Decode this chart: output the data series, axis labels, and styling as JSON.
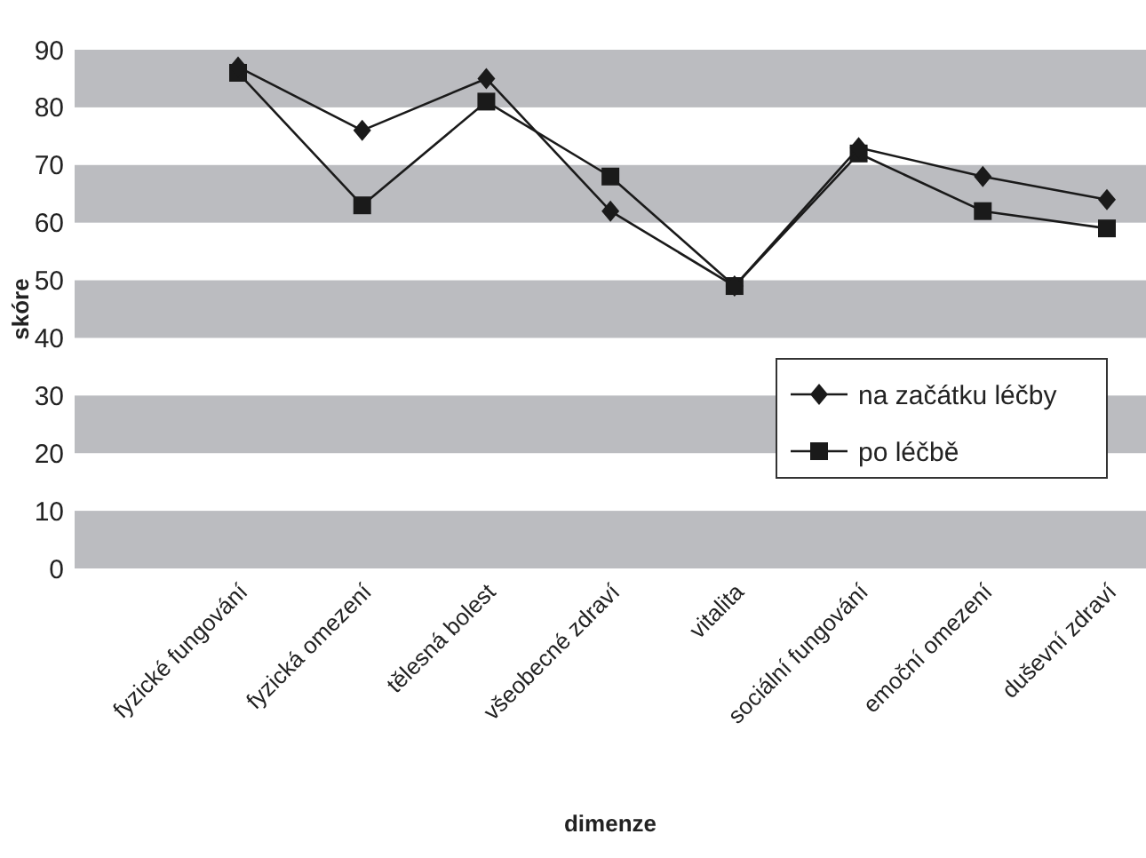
{
  "chart_data": {
    "type": "line",
    "xlabel": "dimenze",
    "ylabel": "skóre",
    "categories": [
      "fyzické fungování",
      "fyzická omezení",
      "tělesná bolest",
      "všeobecné zdraví",
      "vitalita",
      "sociální fungování",
      "emoční omezení",
      "duševní zdraví"
    ],
    "series": [
      {
        "name": "na začátku léčby",
        "color": "#1a1a1a",
        "marker": "diamond",
        "values": [
          87,
          76,
          85,
          62,
          49,
          73,
          68,
          64
        ]
      },
      {
        "name": "po léčbě",
        "color": "#1a1a1a",
        "marker": "square",
        "values": [
          86,
          63,
          81,
          68,
          49,
          72,
          62,
          59
        ]
      }
    ],
    "ylim": [
      0,
      90
    ],
    "yticks": [
      0,
      10,
      20,
      30,
      40,
      50,
      60,
      70,
      80,
      90
    ],
    "bands": [
      {
        "axis": "y",
        "from": 0,
        "to": 10,
        "color": "#bbbcc0"
      },
      {
        "axis": "y",
        "from": 20,
        "to": 30,
        "color": "#bbbcc0"
      },
      {
        "axis": "y",
        "from": 40,
        "to": 50,
        "color": "#bbbcc0"
      },
      {
        "axis": "y",
        "from": 60,
        "to": 70,
        "color": "#bbbcc0"
      },
      {
        "axis": "y",
        "from": 80,
        "to": 90,
        "color": "#bbbcc0"
      }
    ],
    "legend": "bottom right",
    "line_style": "solid"
  }
}
